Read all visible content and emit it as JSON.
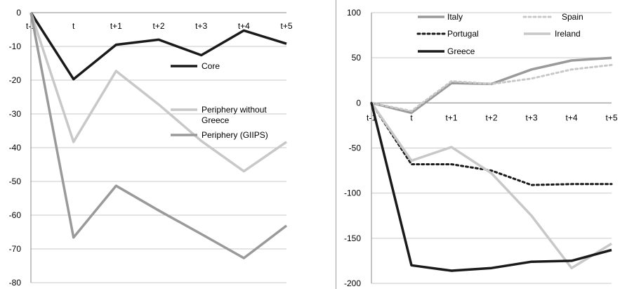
{
  "chart_data": [
    {
      "type": "line",
      "categories": [
        "t-1",
        "t",
        "t+1",
        "t+2",
        "t+3",
        "t+4",
        "t+5"
      ],
      "ylim": [
        -80,
        0
      ],
      "yticks": [
        0,
        -10,
        -20,
        -30,
        -40,
        -50,
        -60,
        -70,
        -80
      ],
      "grid": true,
      "legend_position": "right",
      "series": [
        {
          "name": "Core",
          "values": [
            0,
            -19.7,
            -9.5,
            -8,
            -12.6,
            -5.3,
            -9.2
          ],
          "color": "#1a1a1a",
          "dash": "solid"
        },
        {
          "name": "Periphery without Greece",
          "values": [
            0,
            -38.3,
            -17.3,
            -27.2,
            -38,
            -47,
            -38.3
          ],
          "color": "#c8c8c8",
          "dash": "solid"
        },
        {
          "name": "Periphery (GIIPS)",
          "values": [
            0,
            -66.6,
            -51.3,
            -58.6,
            -65.6,
            -72.7,
            -63.1
          ],
          "color": "#9a9a9a",
          "dash": "solid"
        }
      ]
    },
    {
      "type": "line",
      "categories": [
        "t-1",
        "t",
        "t+1",
        "t+2",
        "t+3",
        "t+4",
        "t+5"
      ],
      "ylim": [
        -200,
        100
      ],
      "yticks": [
        100,
        50,
        0,
        -50,
        -100,
        -150,
        -200
      ],
      "grid": true,
      "legend_position": "top",
      "series": [
        {
          "name": "Italy",
          "values": [
            0,
            -11,
            22,
            21,
            37,
            47,
            50
          ],
          "color": "#9a9a9a",
          "dash": "solid"
        },
        {
          "name": "Spain",
          "values": [
            0,
            -9,
            24,
            21,
            27,
            37,
            42
          ],
          "color": "#c8c8c8",
          "dash": "dotted"
        },
        {
          "name": "Portugal",
          "values": [
            0,
            -68,
            -68,
            -75,
            -91,
            -90,
            -90
          ],
          "color": "#1a1a1a",
          "dash": "dotted"
        },
        {
          "name": "Ireland",
          "values": [
            0,
            -64,
            -49,
            -78,
            -125,
            -183,
            -156
          ],
          "color": "#c8c8c8",
          "dash": "solid"
        },
        {
          "name": "Greece",
          "values": [
            0,
            -180,
            -186,
            -183,
            -176,
            -175,
            -163
          ],
          "color": "#1a1a1a",
          "dash": "solid"
        }
      ]
    }
  ]
}
